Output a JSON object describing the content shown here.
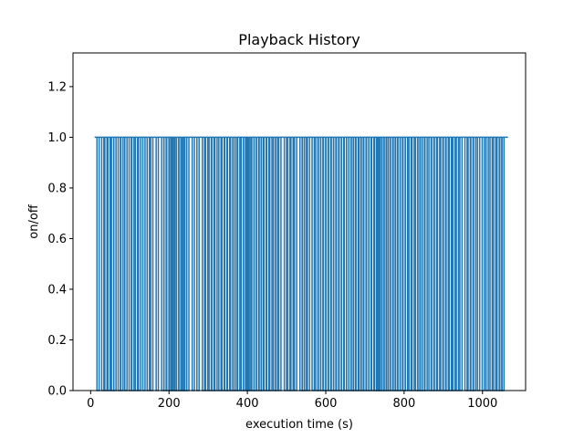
{
  "chart_data": {
    "type": "line",
    "title": "Playback History",
    "xlabel": "execution time (s)",
    "ylabel": "on/off",
    "xlim": [
      -45,
      1110
    ],
    "ylim": [
      0,
      1.333
    ],
    "xticks": [
      0,
      200,
      400,
      600,
      800,
      1000
    ],
    "xtick_labels": [
      "0",
      "200",
      "400",
      "600",
      "800",
      "1000"
    ],
    "yticks": [
      0.0,
      0.2,
      0.4,
      0.6,
      0.8,
      1.0,
      1.2
    ],
    "ytick_labels": [
      "0.0",
      "0.2",
      "0.4",
      "0.6",
      "0.8",
      "1.0",
      "1.2"
    ],
    "grid": false,
    "series": [
      {
        "color": "#1f77b4",
        "x": [
          10,
          1065
        ],
        "y": [
          1,
          1
        ],
        "off_times": [
          19,
          31,
          39,
          47,
          56,
          62,
          73,
          80,
          90,
          101,
          108,
          117,
          125,
          136,
          147,
          156,
          170,
          184,
          190,
          197,
          203,
          207,
          212,
          216,
          222,
          228,
          233,
          237,
          242,
          248,
          262,
          274,
          288,
          296,
          305,
          312,
          320,
          330,
          338,
          345,
          352,
          360,
          366,
          371,
          378,
          387,
          393,
          398,
          402,
          406,
          414,
          420,
          426,
          433,
          438,
          445,
          452,
          460,
          469,
          474,
          483,
          497,
          506,
          514,
          523,
          537,
          543,
          548,
          556,
          568,
          577,
          584,
          590,
          597,
          603,
          610,
          617,
          623,
          630,
          637,
          643,
          650,
          656,
          662,
          668,
          673,
          680,
          688,
          693,
          700,
          707,
          713,
          720,
          727,
          732,
          736,
          741,
          746,
          752,
          757,
          762,
          768,
          775,
          780,
          787,
          793,
          800,
          806,
          815,
          823,
          832,
          838,
          843,
          849,
          856,
          866,
          873,
          880,
          888,
          896,
          903,
          910,
          918,
          927,
          936,
          945,
          958,
          966,
          973,
          980,
          990,
          1002,
          1012,
          1022,
          1031,
          1040,
          1047,
          1052
        ]
      }
    ]
  }
}
